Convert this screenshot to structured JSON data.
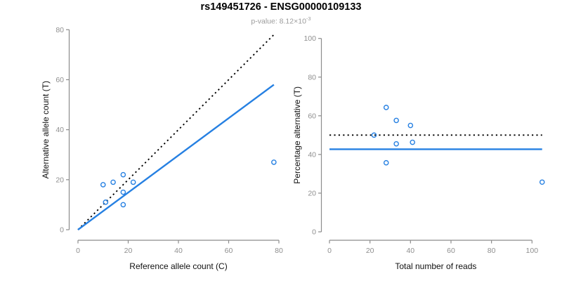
{
  "header": {
    "title": "rs149451726 - ENSG00000109133",
    "pvalue_prefix": "p-value: 8.12×10",
    "pvalue_exponent": "-3"
  },
  "colors": {
    "accent_blue": "#2680E2",
    "line_black": "#000000",
    "axis_gray": "#8c8c8c",
    "tick_label_gray": "#8f8f8f",
    "subtitle_gray": "#9b9b9b"
  },
  "chart_data": [
    {
      "type": "scatter",
      "name": "allele-count-scatter",
      "xlabel": "Reference allele count (C)",
      "ylabel": "Alternative allele count (T)",
      "xlim": [
        0,
        80
      ],
      "ylim": [
        0,
        80
      ],
      "xticks": [
        0,
        20,
        40,
        60,
        80
      ],
      "yticks": [
        0,
        20,
        40,
        60,
        80
      ],
      "grid": false,
      "points": [
        [
          10,
          18
        ],
        [
          14,
          19
        ],
        [
          18,
          22
        ],
        [
          22,
          19
        ],
        [
          18,
          15
        ],
        [
          11,
          11
        ],
        [
          18,
          10
        ],
        [
          78,
          27
        ]
      ],
      "lines": [
        {
          "name": "identity-line",
          "style": "dotted",
          "color": "#000000",
          "x1": 0,
          "y1": 0,
          "x2": 78,
          "y2": 78
        },
        {
          "name": "fit-line",
          "style": "solid",
          "color": "#2680E2",
          "x1": 0,
          "y1": 0,
          "x2": 78,
          "y2": 58
        }
      ]
    },
    {
      "type": "scatter",
      "name": "percentage-vs-reads-scatter",
      "xlabel": "Total number of reads",
      "ylabel": "Percentage alternative (T)",
      "xlim": [
        0,
        105
      ],
      "ylim": [
        0,
        100
      ],
      "xticks": [
        0,
        20,
        40,
        60,
        80,
        100
      ],
      "yticks": [
        0,
        20,
        40,
        60,
        80,
        100
      ],
      "grid": false,
      "points": [
        [
          28,
          64.3
        ],
        [
          33,
          57.6
        ],
        [
          40,
          55
        ],
        [
          22,
          50
        ],
        [
          33,
          45.5
        ],
        [
          41,
          46.3
        ],
        [
          28,
          35.7
        ],
        [
          105,
          25.7
        ]
      ],
      "lines": [
        {
          "name": "expected-50pct-line",
          "style": "dotted",
          "color": "#000000",
          "x1": 0,
          "y1": 50,
          "x2": 105,
          "y2": 50
        },
        {
          "name": "mean-percentage-line",
          "style": "solid",
          "color": "#2680E2",
          "x1": 0,
          "y1": 42.7,
          "x2": 105,
          "y2": 42.7
        }
      ]
    }
  ]
}
